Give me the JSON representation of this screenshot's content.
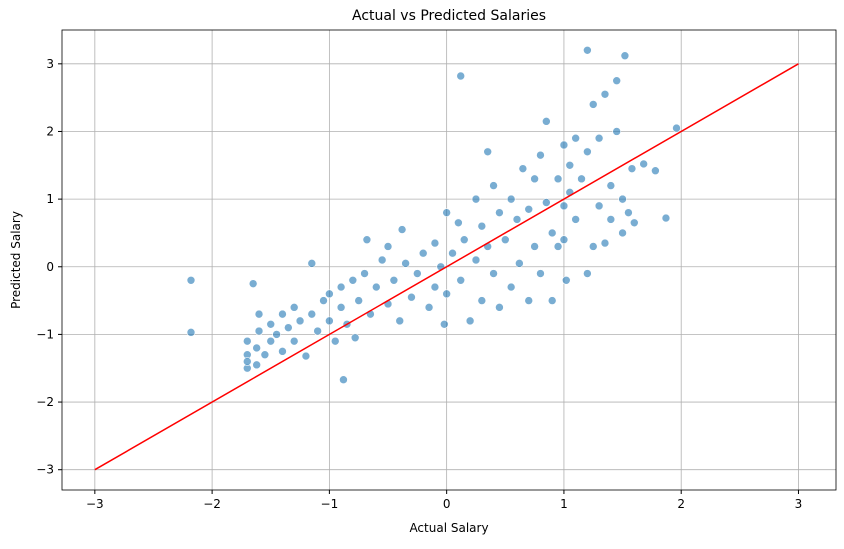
{
  "chart_data": {
    "type": "scatter",
    "title": "Actual vs Predicted Salaries",
    "x_label": "Actual Salary",
    "y_label": "Predicted Salary",
    "xlim": [
      -3.28,
      3.32
    ],
    "ylim": [
      -3.3,
      3.5
    ],
    "xticks": [
      {
        "value": -3,
        "label": "−3"
      },
      {
        "value": -2,
        "label": "−2"
      },
      {
        "value": -1,
        "label": "−1"
      },
      0,
      1,
      2,
      3
    ],
    "yticks": [
      {
        "value": -3,
        "label": "−3"
      },
      {
        "value": -2,
        "label": "−2"
      },
      {
        "value": -1,
        "label": "−1"
      },
      0,
      1,
      2,
      3
    ],
    "grid": true,
    "series": [
      {
        "color": "#1f77b4",
        "x": [
          -2.18,
          -2.18,
          -1.65,
          -0.88,
          0.12,
          1.2,
          1.52,
          1.96,
          1.87,
          1.78,
          1.68,
          -1.7,
          -1.7,
          -1.7,
          -1.7,
          -1.62,
          -1.62,
          -1.6,
          -1.6,
          -1.55,
          -1.5,
          -1.5,
          -1.45,
          -1.4,
          -1.4,
          -1.35,
          -1.3,
          -1.3,
          -1.25,
          -1.2,
          -1.15,
          -1.15,
          -1.1,
          -1.05,
          -1.0,
          -1.0,
          -0.95,
          -0.9,
          -0.9,
          -0.85,
          -0.8,
          -0.78,
          -0.75,
          -0.7,
          -0.68,
          -0.65,
          -0.6,
          -0.55,
          -0.5,
          -0.5,
          -0.45,
          -0.4,
          -0.38,
          -0.35,
          -0.3,
          -0.25,
          -0.2,
          -0.15,
          -0.1,
          -0.1,
          -0.05,
          -0.02,
          0.0,
          0.0,
          0.05,
          0.1,
          0.12,
          0.15,
          0.2,
          0.25,
          0.25,
          0.3,
          0.3,
          0.35,
          0.35,
          0.4,
          0.4,
          0.45,
          0.45,
          0.5,
          0.55,
          0.55,
          0.6,
          0.62,
          0.65,
          0.7,
          0.7,
          0.75,
          0.75,
          0.8,
          0.8,
          0.85,
          0.85,
          0.9,
          0.9,
          0.95,
          0.95,
          1.0,
          1.0,
          1.0,
          1.02,
          1.05,
          1.05,
          1.1,
          1.1,
          1.15,
          1.2,
          1.2,
          1.25,
          1.25,
          1.3,
          1.3,
          1.35,
          1.35,
          1.4,
          1.4,
          1.45,
          1.45,
          1.5,
          1.5,
          1.55,
          1.58,
          1.6
        ],
        "values": [
          -0.2,
          -0.97,
          -0.25,
          -1.67,
          2.82,
          3.2,
          3.12,
          2.05,
          0.72,
          1.42,
          1.52,
          -1.5,
          -1.3,
          -1.1,
          -1.4,
          -1.45,
          -1.2,
          -0.95,
          -0.7,
          -1.3,
          -1.1,
          -0.85,
          -1.0,
          -0.7,
          -1.25,
          -0.9,
          -0.6,
          -1.1,
          -0.8,
          -1.32,
          -0.7,
          0.05,
          -0.95,
          -0.5,
          -0.8,
          -0.4,
          -1.1,
          -0.6,
          -0.3,
          -0.85,
          -0.2,
          -1.05,
          -0.5,
          -0.1,
          0.4,
          -0.7,
          -0.3,
          0.1,
          -0.55,
          0.3,
          -0.2,
          -0.8,
          0.55,
          0.05,
          -0.45,
          -0.1,
          0.2,
          -0.6,
          0.35,
          -0.3,
          0.0,
          -0.85,
          0.8,
          -0.4,
          0.2,
          0.65,
          -0.2,
          0.4,
          -0.8,
          1.0,
          0.1,
          -0.5,
          0.6,
          1.7,
          0.3,
          -0.1,
          1.2,
          0.8,
          -0.6,
          0.4,
          1.0,
          -0.3,
          0.7,
          0.05,
          1.45,
          -0.5,
          0.85,
          1.3,
          0.3,
          -0.1,
          1.65,
          0.95,
          2.15,
          0.5,
          -0.5,
          1.3,
          0.3,
          1.8,
          0.9,
          0.4,
          -0.2,
          1.5,
          1.1,
          1.9,
          0.7,
          1.3,
          -0.1,
          1.7,
          2.4,
          0.3,
          0.9,
          1.9,
          2.55,
          0.35,
          1.2,
          0.7,
          2.75,
          2.0,
          0.5,
          1.0,
          0.8,
          1.45,
          0.65
        ]
      }
    ],
    "reference_line": {
      "color": "#ff0000",
      "x": [
        -3,
        3
      ],
      "values": [
        -3,
        3
      ]
    }
  }
}
